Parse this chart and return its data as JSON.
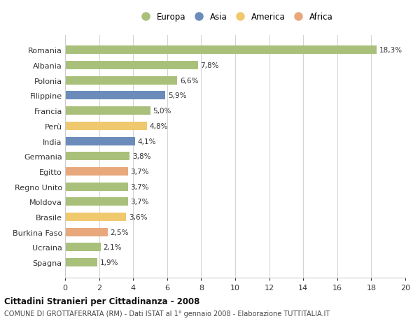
{
  "categories": [
    "Romania",
    "Albania",
    "Polonia",
    "Filippine",
    "Francia",
    "Perù",
    "India",
    "Germania",
    "Egitto",
    "Regno Unito",
    "Moldova",
    "Brasile",
    "Burkina Faso",
    "Ucraina",
    "Spagna"
  ],
  "values": [
    18.3,
    7.8,
    6.6,
    5.9,
    5.0,
    4.8,
    4.1,
    3.8,
    3.7,
    3.7,
    3.7,
    3.6,
    2.5,
    2.1,
    1.9
  ],
  "labels": [
    "18,3%",
    "7,8%",
    "6,6%",
    "5,9%",
    "5,0%",
    "4,8%",
    "4,1%",
    "3,8%",
    "3,7%",
    "3,7%",
    "3,7%",
    "3,6%",
    "2,5%",
    "2,1%",
    "1,9%"
  ],
  "continents": [
    "Europa",
    "Europa",
    "Europa",
    "Asia",
    "Europa",
    "America",
    "Asia",
    "Europa",
    "Africa",
    "Europa",
    "Europa",
    "America",
    "Africa",
    "Europa",
    "Europa"
  ],
  "continent_colors": {
    "Europa": "#a8c07a",
    "Asia": "#6b8cba",
    "America": "#f0c96e",
    "Africa": "#e8a87c"
  },
  "legend_order": [
    "Europa",
    "Asia",
    "America",
    "Africa"
  ],
  "title": "Cittadini Stranieri per Cittadinanza - 2008",
  "subtitle": "COMUNE DI GROTTAFERRATA (RM) - Dati ISTAT al 1° gennaio 2008 - Elaborazione TUTTITALIA.IT",
  "xlim": [
    0,
    20
  ],
  "xticks": [
    0,
    2,
    4,
    6,
    8,
    10,
    12,
    14,
    16,
    18,
    20
  ],
  "background_color": "#ffffff",
  "grid_color": "#cccccc",
  "bar_height": 0.55
}
